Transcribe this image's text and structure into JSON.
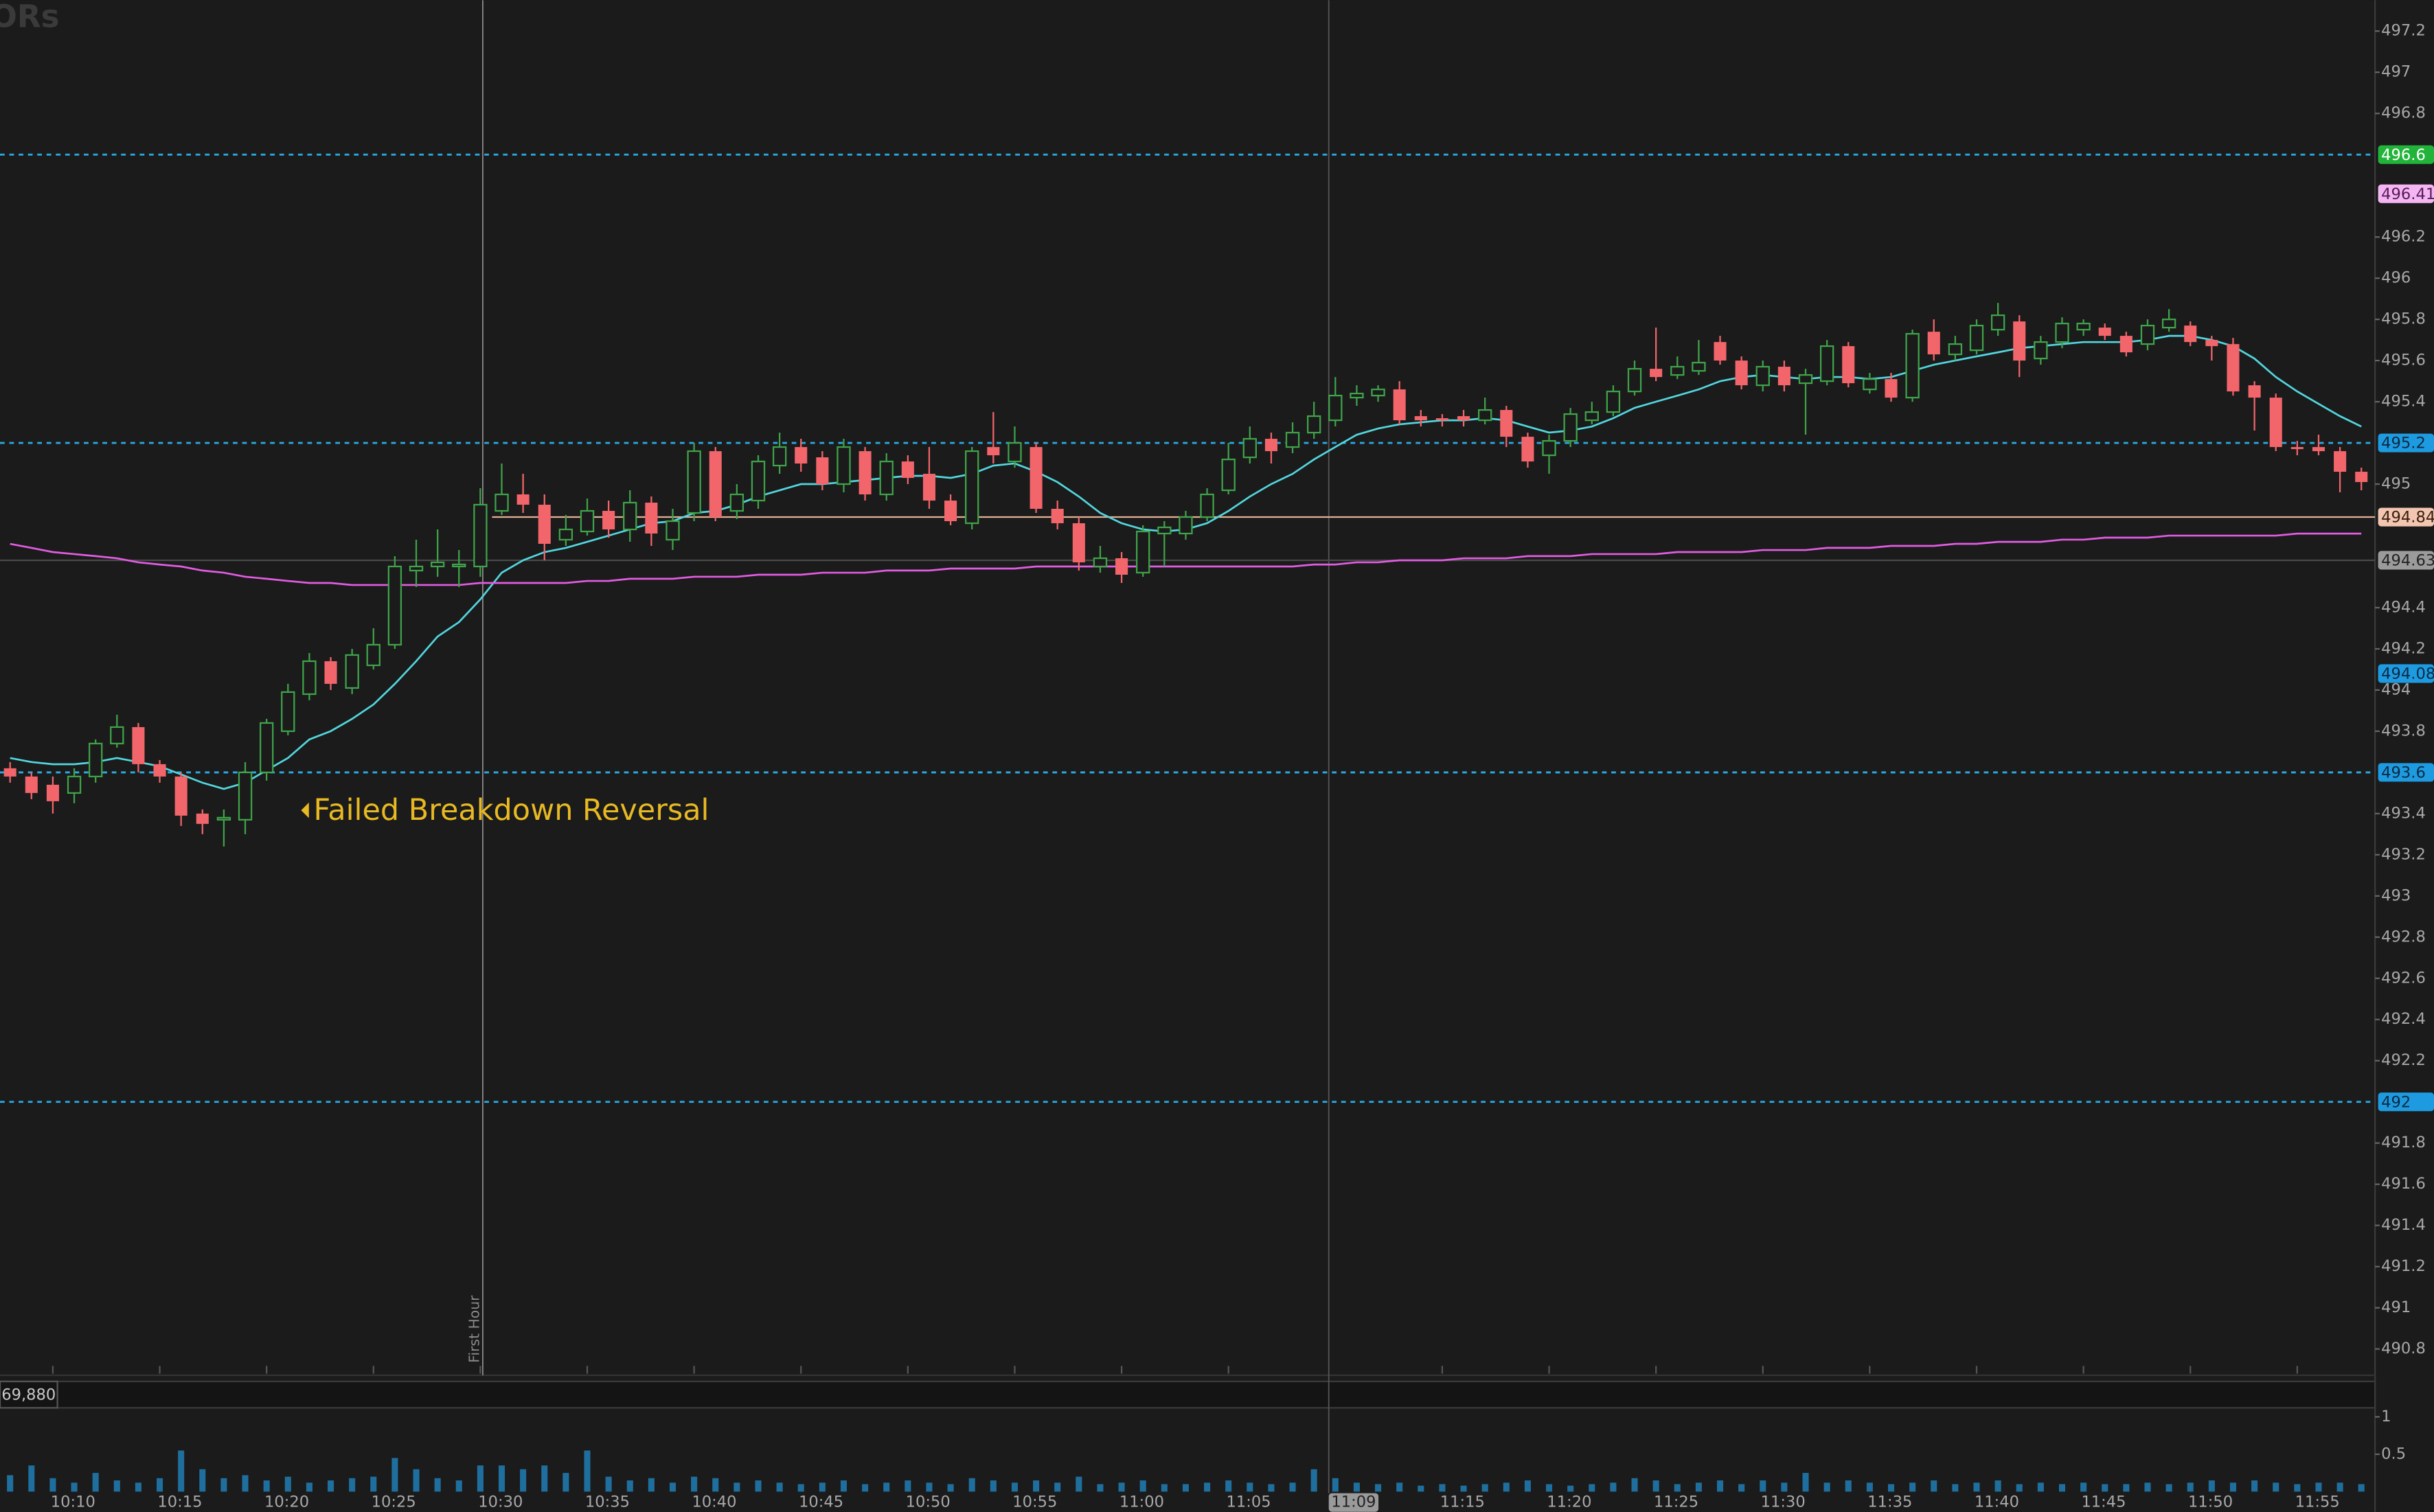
{
  "chart_data": {
    "type": "candlestick",
    "logo": "ORs",
    "annotation": "Failed Breakdown Reversal",
    "first_hour_label": "First Hour",
    "volume_header": "69,880",
    "up_color": "#3fa34a",
    "down_color": "#f2656b",
    "ylim": [
      490.68,
      497.35
    ],
    "yticks": [
      490.8,
      491,
      491.2,
      491.4,
      491.6,
      491.8,
      492.2,
      492.4,
      492.6,
      492.8,
      493,
      493.2,
      493.4,
      493.8,
      494,
      494.2,
      494.4,
      495,
      495.4,
      495.6,
      495.8,
      496,
      496.2,
      496.8,
      497,
      497.2
    ],
    "price_labels": [
      {
        "value": 496.6,
        "bg": "#22b33a",
        "fg": "#ffffff",
        "line": "dashed",
        "line_color": "#29a8df"
      },
      {
        "value": 496.41,
        "bg": "#f3b6f3",
        "fg": "#5a1a5a"
      },
      {
        "value": 495.2,
        "bg": "#1e9be0",
        "fg": "#0b2a44",
        "line": "dashed",
        "line_color": "#29a8df"
      },
      {
        "value": 494.84,
        "bg": "#f2c6b0",
        "fg": "#3a2010",
        "line": "solid",
        "line_color": "#e2b094"
      },
      {
        "value": 494.63,
        "bg": "#9b9b9b",
        "fg": "#222222",
        "line": "solid",
        "line_color": "#4a4a4a"
      },
      {
        "value": 494.08,
        "bg": "#1e9be0",
        "fg": "#0b2a44"
      },
      {
        "value": 493.6,
        "bg": "#1e9be0",
        "fg": "#0b2a44",
        "line": "dashed",
        "line_color": "#29a8df"
      },
      {
        "value": 492,
        "bg": "#1e9be0",
        "fg": "#0b2a44",
        "line": "dashed",
        "line_color": "#29a8df"
      }
    ],
    "cursor_index": 61,
    "categories": [
      null,
      null,
      "10:10",
      null,
      null,
      null,
      null,
      "10:15",
      null,
      null,
      null,
      null,
      "10:20",
      null,
      null,
      null,
      null,
      "10:25",
      null,
      null,
      null,
      null,
      "10:30",
      null,
      null,
      null,
      null,
      "10:35",
      null,
      null,
      null,
      null,
      "10:40",
      null,
      null,
      null,
      null,
      "10:45",
      null,
      null,
      null,
      null,
      "10:50",
      null,
      null,
      null,
      null,
      "10:55",
      null,
      null,
      null,
      null,
      "11:00",
      null,
      null,
      null,
      null,
      "11:05",
      null,
      null,
      null,
      "11:09",
      null,
      null,
      null,
      null,
      null,
      "11:15",
      null,
      null,
      null,
      null,
      "11:20",
      null,
      null,
      null,
      null,
      "11:25",
      null,
      null,
      null,
      null,
      "11:30",
      null,
      null,
      null,
      null,
      "11:35",
      null,
      null,
      null,
      null,
      "11:40",
      null,
      null,
      null,
      null,
      "11:45",
      null,
      null,
      null,
      null,
      "11:50",
      null,
      null,
      null,
      null,
      "11:55",
      null,
      null,
      null
    ],
    "ohlc": [
      [
        493.62,
        493.65,
        493.55,
        493.58
      ],
      [
        493.58,
        493.6,
        493.47,
        493.5
      ],
      [
        493.54,
        493.58,
        493.4,
        493.46
      ],
      [
        493.5,
        493.62,
        493.45,
        493.58
      ],
      [
        493.58,
        493.76,
        493.55,
        493.74
      ],
      [
        493.74,
        493.88,
        493.72,
        493.82
      ],
      [
        493.82,
        493.84,
        493.6,
        493.64
      ],
      [
        493.64,
        493.66,
        493.55,
        493.58
      ],
      [
        493.58,
        493.6,
        493.34,
        493.39
      ],
      [
        493.4,
        493.42,
        493.3,
        493.35
      ],
      [
        493.37,
        493.42,
        493.24,
        493.38
      ],
      [
        493.37,
        493.65,
        493.3,
        493.6
      ],
      [
        493.6,
        493.86,
        493.56,
        493.84
      ],
      [
        493.8,
        494.03,
        493.78,
        493.99
      ],
      [
        493.98,
        494.18,
        493.95,
        494.14
      ],
      [
        494.14,
        494.16,
        494,
        494.03
      ],
      [
        494.01,
        494.2,
        493.98,
        494.17
      ],
      [
        494.12,
        494.3,
        494.1,
        494.22
      ],
      [
        494.22,
        494.65,
        494.2,
        494.6
      ],
      [
        494.58,
        494.73,
        494.5,
        494.6
      ],
      [
        494.6,
        494.78,
        494.55,
        494.62
      ],
      [
        494.6,
        494.68,
        494.5,
        494.61
      ],
      [
        494.6,
        494.98,
        494.55,
        494.9
      ],
      [
        494.87,
        495.1,
        494.85,
        494.95
      ],
      [
        494.95,
        495.05,
        494.86,
        494.9
      ],
      [
        494.9,
        494.95,
        494.63,
        494.71
      ],
      [
        494.73,
        494.85,
        494.7,
        494.78
      ],
      [
        494.77,
        494.93,
        494.75,
        494.87
      ],
      [
        494.87,
        494.92,
        494.74,
        494.78
      ],
      [
        494.78,
        494.97,
        494.72,
        494.91
      ],
      [
        494.91,
        494.94,
        494.7,
        494.76
      ],
      [
        494.73,
        494.88,
        494.68,
        494.82
      ],
      [
        494.86,
        495.2,
        494.82,
        495.16
      ],
      [
        495.16,
        495.18,
        494.82,
        494.84
      ],
      [
        494.87,
        495,
        494.83,
        494.95
      ],
      [
        494.92,
        495.14,
        494.88,
        495.11
      ],
      [
        495.09,
        495.25,
        495.05,
        495.18
      ],
      [
        495.18,
        495.22,
        495.06,
        495.1
      ],
      [
        495.13,
        495.16,
        494.97,
        495
      ],
      [
        495,
        495.22,
        494.96,
        495.18
      ],
      [
        495.16,
        495.18,
        494.92,
        494.95
      ],
      [
        494.95,
        495.15,
        494.92,
        495.11
      ],
      [
        495.11,
        495.14,
        495,
        495.03
      ],
      [
        495.05,
        495.18,
        494.88,
        494.92
      ],
      [
        494.92,
        494.95,
        494.8,
        494.82
      ],
      [
        494.81,
        495.18,
        494.78,
        495.16
      ],
      [
        495.18,
        495.35,
        495.1,
        495.14
      ],
      [
        495.11,
        495.28,
        495.08,
        495.2
      ],
      [
        495.18,
        495.2,
        494.86,
        494.88
      ],
      [
        494.88,
        494.92,
        494.78,
        494.81
      ],
      [
        494.81,
        494.84,
        494.58,
        494.62
      ],
      [
        494.6,
        494.7,
        494.57,
        494.64
      ],
      [
        494.64,
        494.67,
        494.52,
        494.56
      ],
      [
        494.57,
        494.8,
        494.55,
        494.77
      ],
      [
        494.76,
        494.82,
        494.6,
        494.79
      ],
      [
        494.76,
        494.87,
        494.73,
        494.84
      ],
      [
        494.84,
        494.98,
        494.82,
        494.95
      ],
      [
        494.97,
        495.2,
        494.95,
        495.12
      ],
      [
        495.13,
        495.28,
        495.1,
        495.22
      ],
      [
        495.22,
        495.25,
        495.1,
        495.16
      ],
      [
        495.18,
        495.3,
        495.15,
        495.25
      ],
      [
        495.25,
        495.4,
        495.22,
        495.33
      ],
      [
        495.31,
        495.52,
        495.28,
        495.43
      ],
      [
        495.42,
        495.48,
        495.38,
        495.44
      ],
      [
        495.43,
        495.48,
        495.4,
        495.46
      ],
      [
        495.46,
        495.5,
        495.29,
        495.31
      ],
      [
        495.33,
        495.36,
        495.28,
        495.31
      ],
      [
        495.32,
        495.34,
        495.28,
        495.31
      ],
      [
        495.33,
        495.36,
        495.28,
        495.31
      ],
      [
        495.31,
        495.42,
        495.29,
        495.36
      ],
      [
        495.36,
        495.38,
        495.18,
        495.23
      ],
      [
        495.23,
        495.25,
        495.08,
        495.11
      ],
      [
        495.14,
        495.24,
        495.05,
        495.21
      ],
      [
        495.21,
        495.37,
        495.18,
        495.34
      ],
      [
        495.31,
        495.4,
        495.29,
        495.35
      ],
      [
        495.35,
        495.48,
        495.33,
        495.45
      ],
      [
        495.45,
        495.6,
        495.43,
        495.56
      ],
      [
        495.56,
        495.76,
        495.5,
        495.52
      ],
      [
        495.53,
        495.62,
        495.51,
        495.57
      ],
      [
        495.55,
        495.7,
        495.53,
        495.59
      ],
      [
        495.69,
        495.72,
        495.58,
        495.6
      ],
      [
        495.6,
        495.62,
        495.46,
        495.48
      ],
      [
        495.48,
        495.6,
        495.45,
        495.57
      ],
      [
        495.57,
        495.6,
        495.45,
        495.48
      ],
      [
        495.49,
        495.56,
        495.24,
        495.53
      ],
      [
        495.5,
        495.7,
        495.48,
        495.67
      ],
      [
        495.67,
        495.69,
        495.47,
        495.49
      ],
      [
        495.46,
        495.54,
        495.44,
        495.51
      ],
      [
        495.51,
        495.54,
        495.4,
        495.42
      ],
      [
        495.42,
        495.75,
        495.4,
        495.73
      ],
      [
        495.74,
        495.8,
        495.6,
        495.63
      ],
      [
        495.63,
        495.72,
        495.6,
        495.68
      ],
      [
        495.65,
        495.8,
        495.63,
        495.77
      ],
      [
        495.75,
        495.88,
        495.72,
        495.82
      ],
      [
        495.79,
        495.82,
        495.52,
        495.6
      ],
      [
        495.61,
        495.72,
        495.58,
        495.69
      ],
      [
        495.69,
        495.81,
        495.66,
        495.78
      ],
      [
        495.75,
        495.8,
        495.72,
        495.78
      ],
      [
        495.76,
        495.78,
        495.7,
        495.72
      ],
      [
        495.72,
        495.74,
        495.62,
        495.64
      ],
      [
        495.68,
        495.8,
        495.65,
        495.77
      ],
      [
        495.76,
        495.85,
        495.74,
        495.8
      ],
      [
        495.77,
        495.79,
        495.67,
        495.69
      ],
      [
        495.7,
        495.72,
        495.6,
        495.67
      ],
      [
        495.68,
        495.71,
        495.43,
        495.45
      ],
      [
        495.48,
        495.5,
        495.26,
        495.42
      ],
      [
        495.42,
        495.44,
        495.16,
        495.18
      ],
      [
        495.18,
        495.21,
        495.14,
        495.17
      ],
      [
        495.18,
        495.24,
        495.14,
        495.16
      ],
      [
        495.16,
        495.18,
        494.96,
        495.06
      ],
      [
        495.06,
        495.08,
        494.97,
        495.01
      ]
    ],
    "lines": [
      {
        "color": "#52d6de",
        "values": [
          493.67,
          493.65,
          493.64,
          493.64,
          493.65,
          493.67,
          493.65,
          493.63,
          493.59,
          493.55,
          493.52,
          493.55,
          493.61,
          493.67,
          493.76,
          493.8,
          493.86,
          493.93,
          494.03,
          494.14,
          494.26,
          494.33,
          494.44,
          494.57,
          494.63,
          494.67,
          494.69,
          494.72,
          494.75,
          494.78,
          494.81,
          494.82,
          494.86,
          494.87,
          494.9,
          494.94,
          494.97,
          495,
          495,
          495.01,
          495.02,
          495.03,
          495.04,
          495.04,
          495.03,
          495.05,
          495.09,
          495.1,
          495.06,
          495.01,
          494.94,
          494.86,
          494.81,
          494.78,
          494.77,
          494.78,
          494.81,
          494.87,
          494.94,
          495,
          495.05,
          495.12,
          495.18,
          495.24,
          495.27,
          495.29,
          495.3,
          495.31,
          495.31,
          495.32,
          495.31,
          495.28,
          495.25,
          495.26,
          495.28,
          495.32,
          495.37,
          495.4,
          495.43,
          495.46,
          495.5,
          495.52,
          495.53,
          495.52,
          495.51,
          495.52,
          495.52,
          495.51,
          495.52,
          495.55,
          495.58,
          495.6,
          495.62,
          495.64,
          495.66,
          495.67,
          495.68,
          495.69,
          495.69,
          495.69,
          495.7,
          495.72,
          495.72,
          495.7,
          495.67,
          495.61,
          495.52,
          495.45,
          495.39,
          495.33,
          495.28
        ]
      },
      {
        "color": "#e25ce2",
        "values": [
          494.71,
          494.69,
          494.67,
          494.66,
          494.65,
          494.64,
          494.62,
          494.61,
          494.6,
          494.58,
          494.57,
          494.55,
          494.54,
          494.53,
          494.52,
          494.52,
          494.51,
          494.51,
          494.51,
          494.51,
          494.51,
          494.51,
          494.52,
          494.52,
          494.52,
          494.52,
          494.52,
          494.53,
          494.53,
          494.54,
          494.54,
          494.54,
          494.55,
          494.55,
          494.55,
          494.56,
          494.56,
          494.56,
          494.57,
          494.57,
          494.57,
          494.58,
          494.58,
          494.58,
          494.59,
          494.59,
          494.59,
          494.59,
          494.6,
          494.6,
          494.6,
          494.6,
          494.6,
          494.6,
          494.6,
          494.6,
          494.6,
          494.6,
          494.6,
          494.6,
          494.6,
          494.61,
          494.61,
          494.62,
          494.62,
          494.63,
          494.63,
          494.63,
          494.64,
          494.64,
          494.64,
          494.65,
          494.65,
          494.65,
          494.66,
          494.66,
          494.66,
          494.66,
          494.67,
          494.67,
          494.67,
          494.67,
          494.68,
          494.68,
          494.68,
          494.69,
          494.69,
          494.69,
          494.7,
          494.7,
          494.7,
          494.71,
          494.71,
          494.72,
          494.72,
          494.72,
          494.73,
          494.73,
          494.74,
          494.74,
          494.74,
          494.75,
          494.75,
          494.75,
          494.75,
          494.75,
          494.75,
          494.76,
          494.76,
          494.76,
          494.76
        ]
      }
    ],
    "volume": {
      "color": "#1f6f9e",
      "ylim": [
        0,
        1.1
      ],
      "yticks": [
        1,
        0.5
      ],
      "values": [
        0.22,
        0.35,
        0.18,
        0.12,
        0.25,
        0.15,
        0.12,
        0.18,
        0.55,
        0.3,
        0.18,
        0.22,
        0.15,
        0.2,
        0.12,
        0.15,
        0.18,
        0.2,
        0.45,
        0.3,
        0.18,
        0.15,
        0.35,
        0.35,
        0.3,
        0.35,
        0.25,
        0.55,
        0.2,
        0.15,
        0.18,
        0.12,
        0.2,
        0.18,
        0.12,
        0.15,
        0.12,
        0.1,
        0.12,
        0.15,
        0.1,
        0.12,
        0.15,
        0.12,
        0.1,
        0.18,
        0.15,
        0.12,
        0.15,
        0.12,
        0.2,
        0.1,
        0.12,
        0.15,
        0.1,
        0.1,
        0.12,
        0.15,
        0.12,
        0.1,
        0.12,
        0.3,
        0.18,
        0.12,
        0.1,
        0.12,
        0.08,
        0.1,
        0.08,
        0.1,
        0.12,
        0.15,
        0.1,
        0.08,
        0.1,
        0.12,
        0.18,
        0.15,
        0.1,
        0.12,
        0.15,
        0.1,
        0.15,
        0.12,
        0.25,
        0.12,
        0.15,
        0.12,
        0.1,
        0.12,
        0.15,
        0.1,
        0.12,
        0.15,
        0.1,
        0.12,
        0.1,
        0.12,
        0.1,
        0.1,
        0.12,
        0.1,
        0.12,
        0.15,
        0.12,
        0.15,
        0.12,
        0.1,
        0.12,
        0.12,
        0.1
      ]
    }
  }
}
